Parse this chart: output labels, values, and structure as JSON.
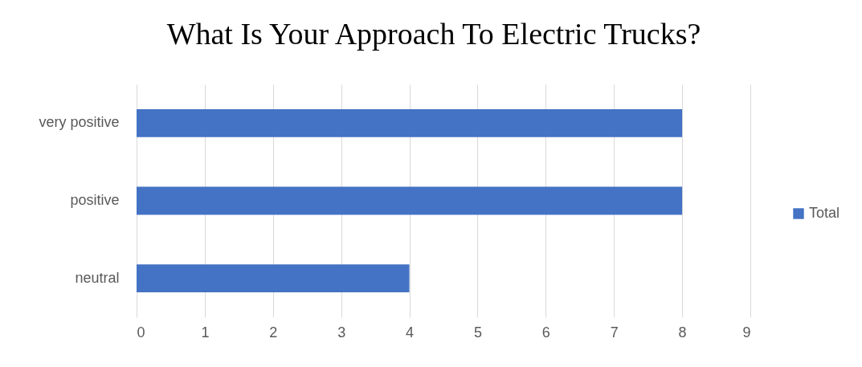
{
  "chart_data": {
    "type": "bar",
    "title": "What Is Your Approach To Electric Trucks?",
    "orientation": "horizontal",
    "categories": [
      "very positive",
      "positive",
      "neutral"
    ],
    "series": [
      {
        "name": "Total",
        "color": "#4472c4",
        "values": [
          8,
          8,
          4
        ]
      }
    ],
    "xlim": [
      0,
      9
    ],
    "xticks": [
      0,
      1,
      2,
      3,
      4,
      5,
      6,
      7,
      8,
      9
    ],
    "grid": "x",
    "legend": "right"
  }
}
